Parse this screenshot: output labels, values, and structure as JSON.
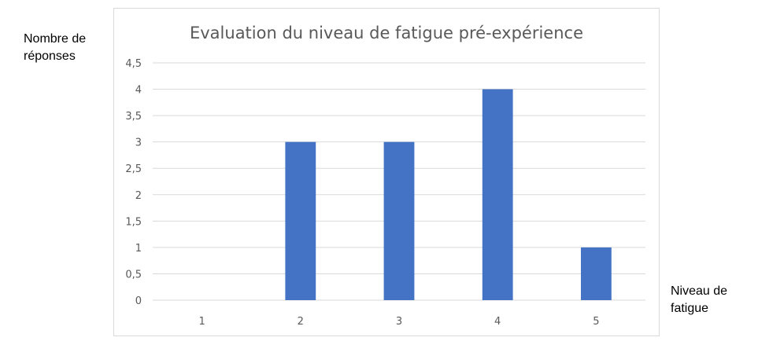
{
  "chart_data": {
    "type": "bar",
    "title": "Evaluation du niveau de fatigue pré-expérience",
    "ylabel": "Nombre de\nréponses",
    "xlabel": "Niveau de\nfatigue",
    "categories": [
      "1",
      "2",
      "3",
      "4",
      "5"
    ],
    "values": [
      0,
      3,
      3,
      4,
      1
    ],
    "ylim": [
      0,
      4.5
    ],
    "yticks": [
      "0",
      "0,5",
      "1",
      "1,5",
      "2",
      "2,5",
      "3",
      "3,5",
      "4",
      "4,5"
    ],
    "grid": true,
    "bar_color": "#4472c4",
    "grid_color": "#d9d9d9"
  }
}
